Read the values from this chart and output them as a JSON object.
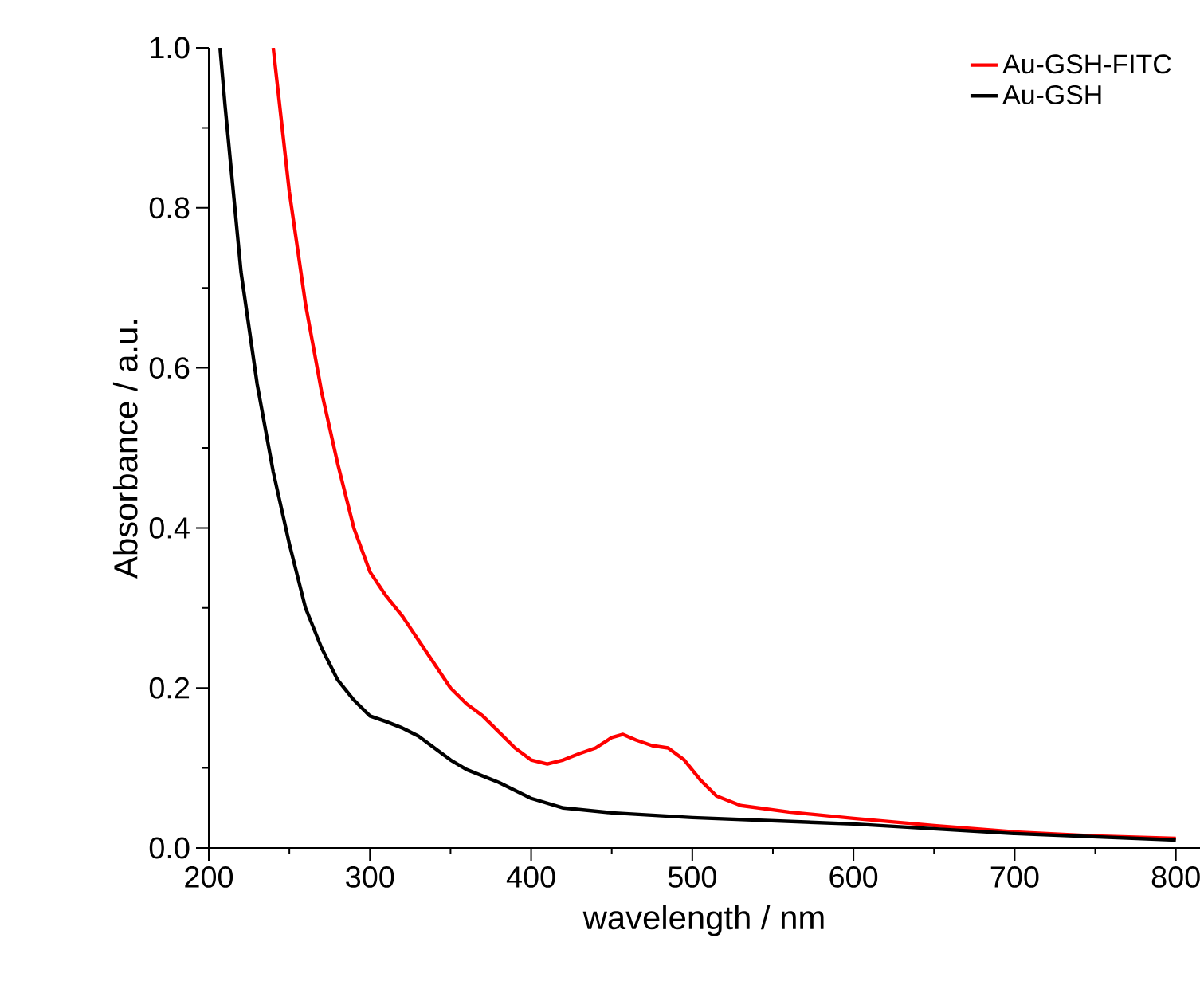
{
  "chart_data": {
    "type": "line",
    "xlabel": "wavelength / nm",
    "ylabel": "Absorbance / a.u.",
    "xlim": [
      200,
      815
    ],
    "ylim": [
      0,
      1.0
    ],
    "xticks": [
      200,
      300,
      400,
      500,
      600,
      700,
      800
    ],
    "yticks": [
      {
        "value": 0,
        "label": "0.0"
      },
      0.2,
      0.4,
      0.6,
      0.8,
      {
        "value": 1.0,
        "label": "1.0"
      }
    ],
    "legend": "top right",
    "grid": false,
    "marker": "none",
    "line_style": "solid",
    "series": [
      {
        "name": "Au-GSH-FITC",
        "color": "#ff0000",
        "x": [
          240,
          250,
          260,
          270,
          280,
          290,
          300,
          310,
          320,
          330,
          340,
          350,
          360,
          370,
          380,
          390,
          400,
          410,
          420,
          430,
          440,
          450,
          457,
          465,
          475,
          485,
          495,
          505,
          515,
          530,
          560,
          600,
          650,
          700,
          750,
          800
        ],
        "values": [
          1.0,
          0.82,
          0.68,
          0.57,
          0.48,
          0.4,
          0.345,
          0.315,
          0.29,
          0.26,
          0.23,
          0.2,
          0.18,
          0.165,
          0.145,
          0.125,
          0.11,
          0.105,
          0.11,
          0.118,
          0.125,
          0.138,
          0.142,
          0.135,
          0.128,
          0.125,
          0.11,
          0.085,
          0.065,
          0.053,
          0.045,
          0.037,
          0.028,
          0.02,
          0.015,
          0.012
        ]
      },
      {
        "name": "Au-GSH",
        "color": "#000000",
        "x": [
          207,
          210,
          220,
          230,
          240,
          250,
          260,
          270,
          280,
          290,
          300,
          310,
          320,
          330,
          340,
          350,
          360,
          380,
          400,
          420,
          450,
          500,
          600,
          700,
          800
        ],
        "values": [
          1.0,
          0.93,
          0.72,
          0.58,
          0.47,
          0.38,
          0.3,
          0.25,
          0.21,
          0.185,
          0.165,
          0.158,
          0.15,
          0.14,
          0.125,
          0.11,
          0.098,
          0.082,
          0.062,
          0.05,
          0.044,
          0.038,
          0.03,
          0.018,
          0.01
        ]
      }
    ]
  }
}
